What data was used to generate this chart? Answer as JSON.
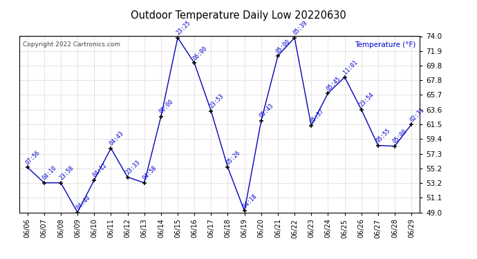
{
  "title": "Outdoor Temperature Daily Low 20220630",
  "copyright": "Copyright 2022 Cartronics.com",
  "ylabel": "Temperature (°F)",
  "background_color": "#ffffff",
  "plot_bg_color": "#ffffff",
  "line_color": "#0000bb",
  "grid_color": "#bbbbbb",
  "text_color": "#0000cc",
  "dates": [
    "06/06",
    "06/07",
    "06/08",
    "06/09",
    "06/10",
    "06/11",
    "06/12",
    "06/13",
    "06/14",
    "06/15",
    "06/16",
    "06/17",
    "06/18",
    "06/19",
    "06/20",
    "06/21",
    "06/22",
    "06/23",
    "06/24",
    "06/25",
    "06/26",
    "06/27",
    "06/28",
    "06/29"
  ],
  "values": [
    55.4,
    53.2,
    53.2,
    49.0,
    53.6,
    58.1,
    54.0,
    53.2,
    62.6,
    73.8,
    70.2,
    63.4,
    55.4,
    49.2,
    62.0,
    71.2,
    73.8,
    61.3,
    65.9,
    68.2,
    63.6,
    58.5,
    58.4,
    61.5
  ],
  "time_labels": [
    "07:56",
    "04:10",
    "23:58",
    "04:40",
    "04:12",
    "04:43",
    "23:33",
    "04:58",
    "00:00",
    "23:25",
    "06:00",
    "23:53",
    "05:26",
    "04:18",
    "05:43",
    "05:00",
    "05:39",
    "05:37",
    "05:45",
    "11:01",
    "23:54",
    "05:55",
    "05:00",
    "02:31"
  ],
  "ylim_min": 49.0,
  "ylim_max": 74.0,
  "yticks": [
    49.0,
    51.1,
    53.2,
    55.2,
    57.3,
    59.4,
    61.5,
    63.6,
    65.7,
    67.8,
    69.8,
    71.9,
    74.0
  ]
}
